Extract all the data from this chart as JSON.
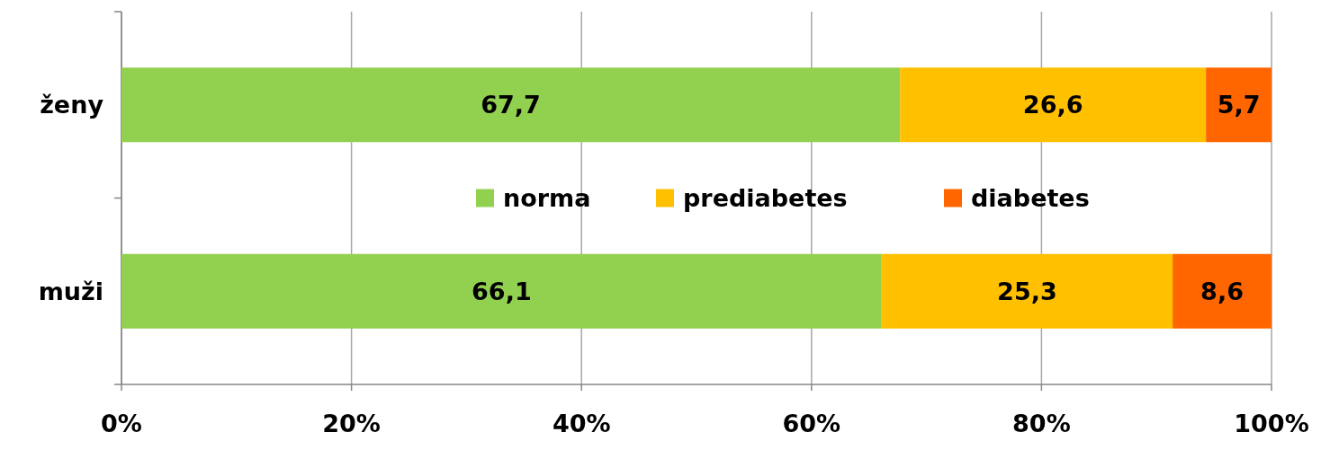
{
  "chart_data": {
    "type": "bar",
    "orientation": "horizontal",
    "stacked": true,
    "categories": [
      "ženy",
      "muži"
    ],
    "series": [
      {
        "name": "norma",
        "color": "#92d050",
        "values": [
          67.7,
          66.1
        ],
        "value_labels": [
          "67,7",
          "66,1"
        ]
      },
      {
        "name": "prediabetes",
        "color": "#ffc000",
        "values": [
          26.6,
          25.3
        ],
        "value_labels": [
          "26,6",
          "25,3"
        ]
      },
      {
        "name": "diabetes",
        "color": "#ff6600",
        "values": [
          5.7,
          8.6
        ],
        "value_labels": [
          "5,7",
          "8,6"
        ]
      }
    ],
    "xlim": [
      0,
      100
    ],
    "xticks": [
      {
        "value": 0,
        "label": "0%"
      },
      {
        "value": 20,
        "label": "20%"
      },
      {
        "value": 40,
        "label": "40%"
      },
      {
        "value": 60,
        "label": "60%"
      },
      {
        "value": 80,
        "label": "80%"
      },
      {
        "value": 100,
        "label": "100%"
      }
    ],
    "grid": "x",
    "legend": "center"
  }
}
